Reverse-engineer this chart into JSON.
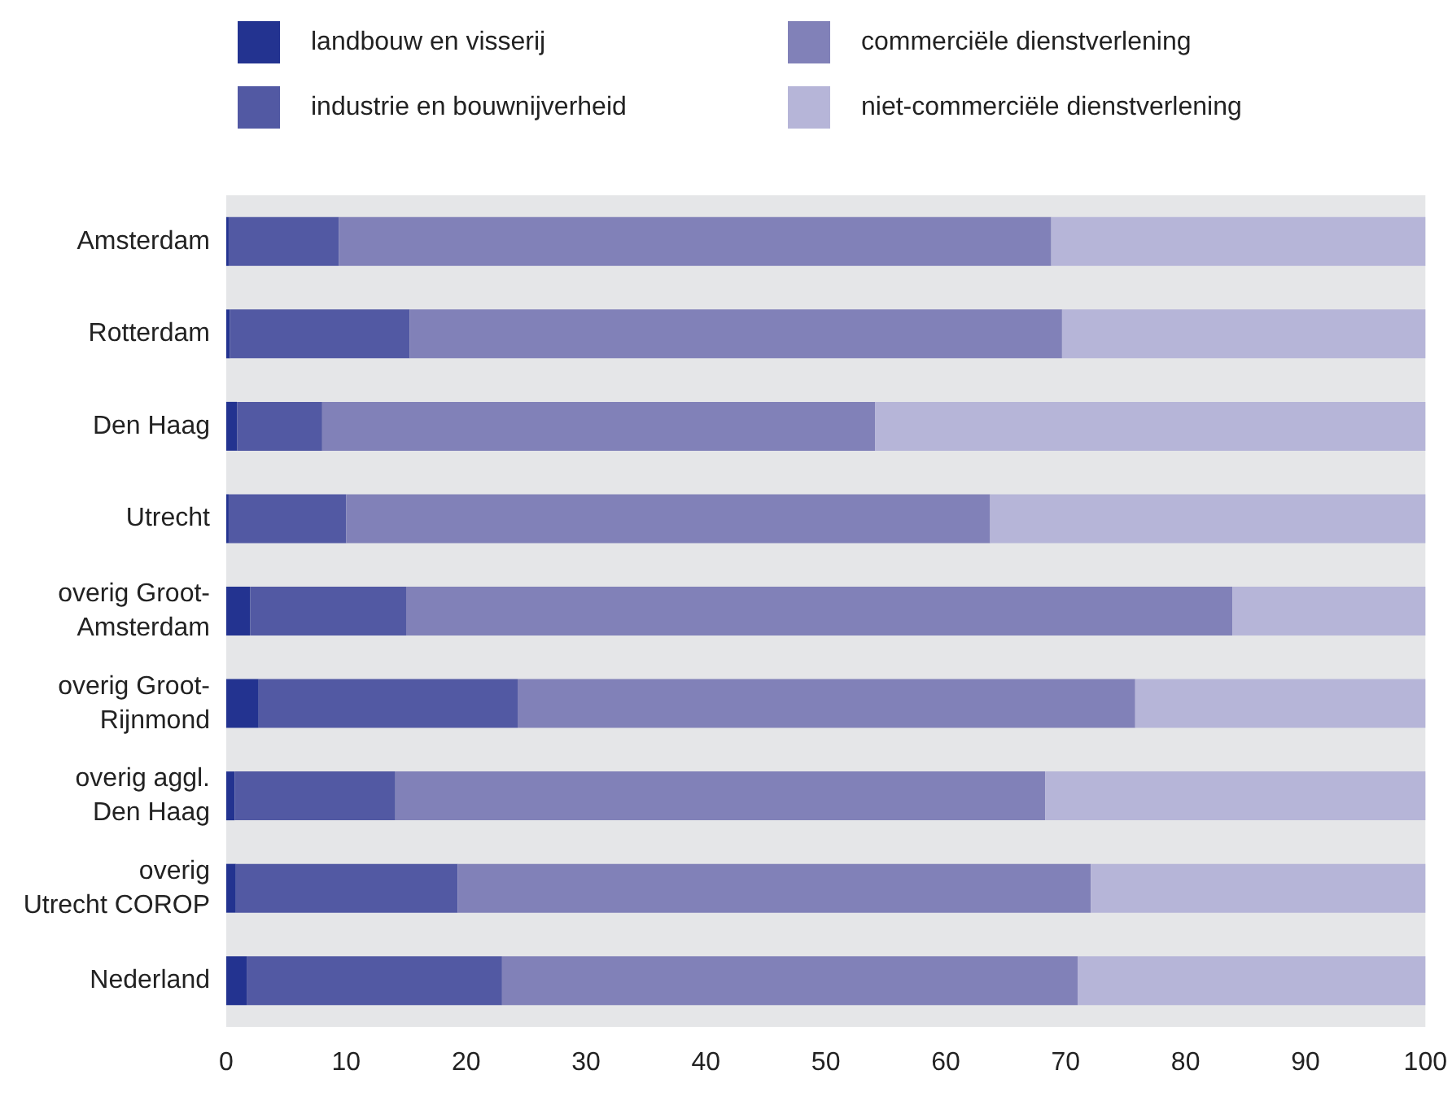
{
  "chart_data": {
    "type": "bar",
    "orientation": "horizontal",
    "stacked": true,
    "categories": [
      "Amsterdam",
      "Rotterdam",
      "Den Haag",
      "Utrecht",
      "overig Groot-\nAmsterdam",
      "overig Groot-\nRijnmond",
      "overig aggl.\nDen Haag",
      "overig\nUtrecht COROP",
      "Nederland"
    ],
    "series": [
      {
        "name": "landbouw en visserij",
        "color": "#233390",
        "values": [
          0.2,
          0.3,
          0.9,
          0.2,
          2.0,
          2.7,
          0.7,
          0.8,
          1.7
        ]
      },
      {
        "name": "industrie en bouwnijverheid",
        "color": "#5259a3",
        "values": [
          9.2,
          15.0,
          7.1,
          9.8,
          13.0,
          21.6,
          13.4,
          18.5,
          21.3
        ]
      },
      {
        "name": "commerciële dienstverlening",
        "color": "#8181b8",
        "values": [
          59.4,
          54.4,
          46.1,
          53.7,
          68.9,
          51.5,
          54.2,
          52.8,
          48.0
        ]
      },
      {
        "name": "niet-commerciële dienstverlening",
        "color": "#b6b5d8",
        "values": [
          31.2,
          30.3,
          45.9,
          36.3,
          16.1,
          24.2,
          31.7,
          27.9,
          29.0
        ]
      }
    ],
    "xlim": [
      0,
      100
    ],
    "xticks": [
      0,
      10,
      20,
      30,
      40,
      50,
      60,
      70,
      80,
      90,
      100
    ],
    "grid": false,
    "legend": "top"
  }
}
